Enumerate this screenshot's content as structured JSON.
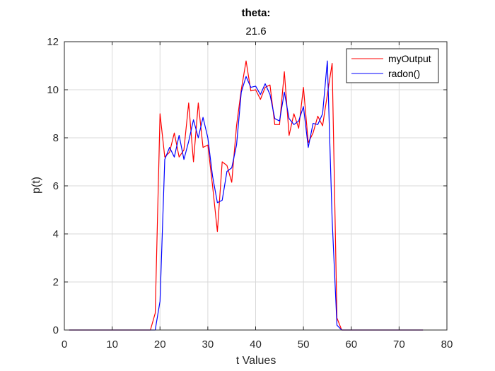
{
  "chart_data": {
    "type": "line",
    "title": "theta:",
    "subtitle": "21.6",
    "xlabel": "t Values",
    "ylabel": "p(t)",
    "xlim": [
      0,
      80
    ],
    "ylim": [
      0,
      12
    ],
    "xticks": [
      "0",
      "10",
      "20",
      "30",
      "40",
      "50",
      "60",
      "70",
      "80"
    ],
    "yticks": [
      "0",
      "2",
      "4",
      "6",
      "8",
      "10",
      "12"
    ],
    "grid": true,
    "legend_position": "top-right",
    "series": [
      {
        "name": "myOutput",
        "color": "#ff0000",
        "points": [
          [
            1,
            0
          ],
          [
            18,
            0
          ],
          [
            19,
            0.7
          ],
          [
            20,
            9.0
          ],
          [
            21,
            7.2
          ],
          [
            22,
            7.4
          ],
          [
            23,
            8.2
          ],
          [
            24,
            7.2
          ],
          [
            25,
            7.5
          ],
          [
            26,
            9.45
          ],
          [
            27,
            7.0
          ],
          [
            28,
            9.45
          ],
          [
            29,
            7.6
          ],
          [
            30,
            7.7
          ],
          [
            31,
            6.0
          ],
          [
            32,
            4.1
          ],
          [
            33,
            7.0
          ],
          [
            34,
            6.85
          ],
          [
            35,
            6.15
          ],
          [
            36,
            8.5
          ],
          [
            37,
            10.0
          ],
          [
            38,
            11.2
          ],
          [
            39,
            9.95
          ],
          [
            40,
            10.0
          ],
          [
            41,
            9.6
          ],
          [
            42,
            10.1
          ],
          [
            43,
            10.2
          ],
          [
            44,
            8.55
          ],
          [
            45,
            8.55
          ],
          [
            46,
            10.75
          ],
          [
            47,
            8.1
          ],
          [
            48,
            9.0
          ],
          [
            49,
            8.4
          ],
          [
            50,
            10.1
          ],
          [
            51,
            7.8
          ],
          [
            52,
            8.2
          ],
          [
            53,
            8.9
          ],
          [
            54,
            8.5
          ],
          [
            55,
            9.8
          ],
          [
            56,
            11.1
          ],
          [
            57,
            0.5
          ],
          [
            58,
            0
          ],
          [
            75,
            0
          ]
        ]
      },
      {
        "name": "radon()",
        "color": "#0000ff",
        "points": [
          [
            1,
            0
          ],
          [
            19,
            0
          ],
          [
            20,
            1.2
          ],
          [
            21,
            7.1
          ],
          [
            22,
            7.6
          ],
          [
            23,
            7.2
          ],
          [
            24,
            8.1
          ],
          [
            25,
            7.1
          ],
          [
            26,
            7.85
          ],
          [
            27,
            8.75
          ],
          [
            28,
            8.0
          ],
          [
            29,
            8.85
          ],
          [
            30,
            8.0
          ],
          [
            31,
            6.4
          ],
          [
            32,
            5.3
          ],
          [
            33,
            5.4
          ],
          [
            34,
            6.6
          ],
          [
            35,
            6.75
          ],
          [
            36,
            7.7
          ],
          [
            37,
            9.9
          ],
          [
            38,
            10.55
          ],
          [
            39,
            10.1
          ],
          [
            40,
            10.15
          ],
          [
            41,
            9.8
          ],
          [
            42,
            10.25
          ],
          [
            43,
            9.8
          ],
          [
            44,
            8.8
          ],
          [
            45,
            8.7
          ],
          [
            46,
            9.9
          ],
          [
            47,
            8.8
          ],
          [
            48,
            8.55
          ],
          [
            49,
            8.7
          ],
          [
            50,
            9.3
          ],
          [
            51,
            7.6
          ],
          [
            52,
            8.6
          ],
          [
            53,
            8.55
          ],
          [
            54,
            9.0
          ],
          [
            55,
            11.2
          ],
          [
            56,
            4.6
          ],
          [
            57,
            0.2
          ],
          [
            58,
            0
          ],
          [
            75,
            0
          ]
        ]
      }
    ]
  }
}
